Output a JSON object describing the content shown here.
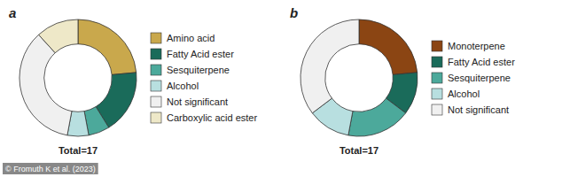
{
  "chart_data": [
    {
      "type": "pie",
      "title": "Total=17",
      "annotations": [
        "a"
      ],
      "categories": [
        "Amino acid",
        "Fatty Acid ester",
        "Sesquiterpene",
        "Alcohol",
        "Not significant",
        "Carboxylic acid ester"
      ],
      "values": [
        4,
        3,
        1,
        1,
        6,
        2
      ],
      "colors": [
        "#C9A84C",
        "#1A6B5A",
        "#4CA99B",
        "#B8DFE0",
        "#F0F0F0",
        "#EEE8C8"
      ]
    },
    {
      "type": "pie",
      "title": "Total=17",
      "annotations": [
        "b"
      ],
      "categories": [
        "Monoterpene",
        "Fatty Acid ester",
        "Sesquiterpene",
        "Alcohol",
        "Not significant"
      ],
      "values": [
        4,
        2,
        3,
        2,
        6
      ],
      "colors": [
        "#8B4513",
        "#1A6B5A",
        "#4CA99B",
        "#B8DFE0",
        "#F0F0F0"
      ]
    }
  ],
  "annotations": [
    "© Fromuth K et al. (2023)"
  ]
}
